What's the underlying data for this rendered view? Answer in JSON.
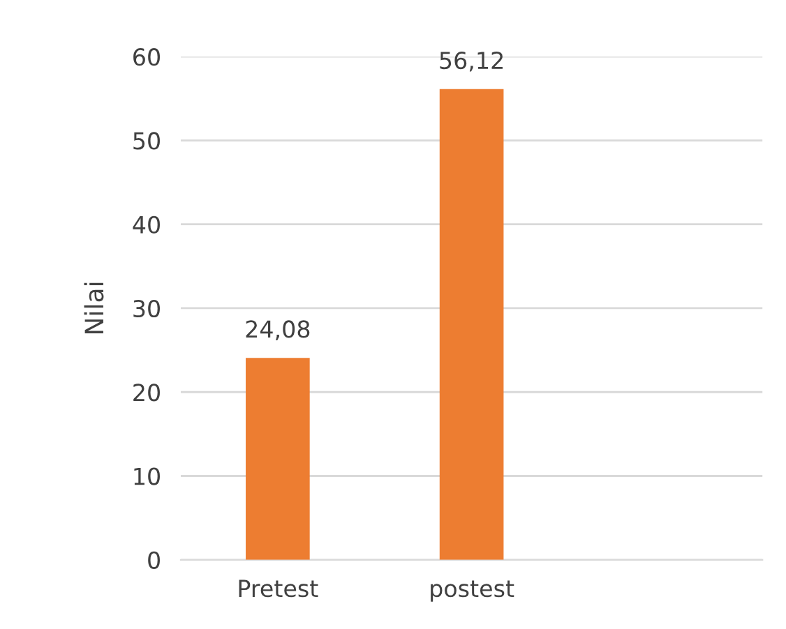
{
  "chart_data": {
    "type": "bar",
    "ylabel": "Nilai",
    "categories": [
      "Pretest",
      "postest",
      null
    ],
    "values": [
      24.08,
      56.12,
      null
    ],
    "value_labels": [
      "24,08",
      "56,12",
      null
    ],
    "color": "#ed7d31",
    "ylim": [
      0,
      60
    ],
    "yticks": [
      0,
      10,
      20,
      30,
      40,
      50,
      60
    ],
    "grid": "y",
    "legend": false
  }
}
